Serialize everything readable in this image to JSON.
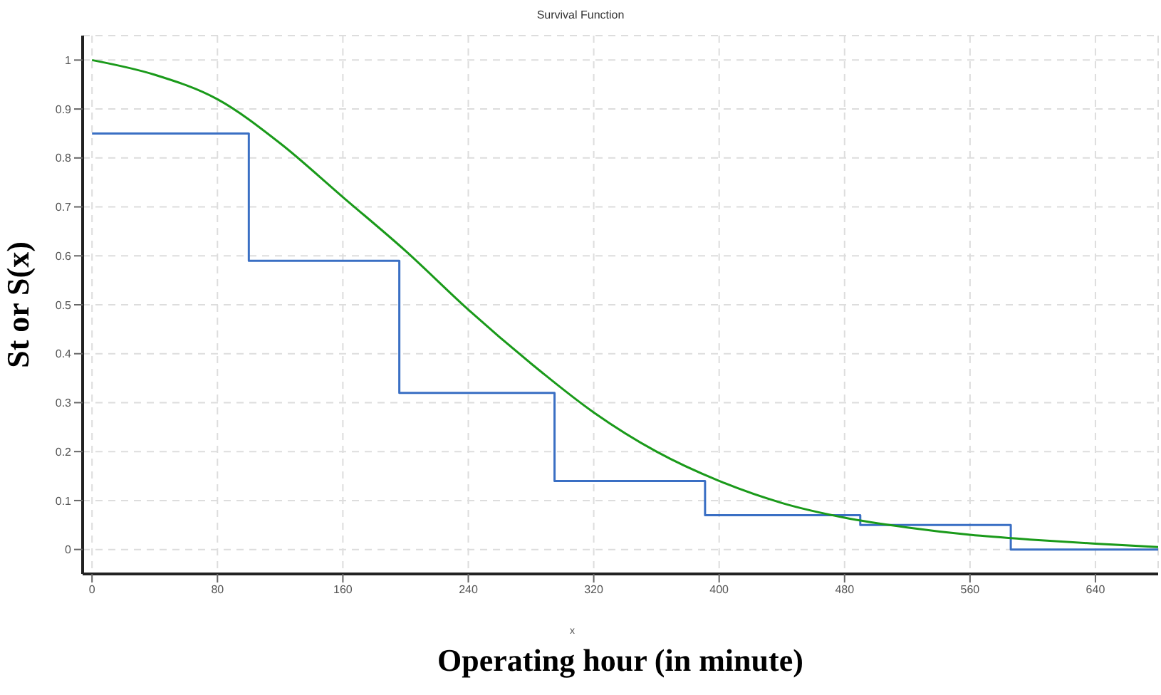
{
  "chart_data": {
    "type": "line",
    "title": "Survival Function",
    "xlabel": "Operating hour (in minute)",
    "ylabel": "St or S(x)",
    "annotations": [
      "x"
    ],
    "xlim": [
      -6,
      680
    ],
    "xticks": [
      0,
      80,
      160,
      240,
      320,
      400,
      480,
      560,
      640
    ],
    "ylim": [
      -0.05,
      1.05
    ],
    "yticks": [
      0,
      0.1,
      0.2,
      0.3,
      0.4,
      0.5,
      0.6,
      0.7,
      0.8,
      0.9,
      1
    ],
    "grid": true,
    "marker": "none",
    "series": [
      {
        "type": "step",
        "color": "#3a6fc4",
        "x": [
          0,
          100,
          196,
          295,
          391,
          490,
          586,
          680
        ],
        "values": [
          0.85,
          0.59,
          0.32,
          0.14,
          0.07,
          0.05,
          0,
          0
        ]
      },
      {
        "color": "#1a9a1a",
        "x": [
          0,
          40,
          80,
          120,
          160,
          200,
          240,
          280,
          320,
          360,
          400,
          440,
          480,
          520,
          560,
          600,
          640,
          680
        ],
        "values": [
          1.0,
          0.97,
          0.92,
          0.83,
          0.72,
          0.61,
          0.49,
          0.38,
          0.28,
          0.2,
          0.14,
          0.095,
          0.065,
          0.045,
          0.03,
          0.02,
          0.012,
          0.005
        ]
      }
    ]
  }
}
